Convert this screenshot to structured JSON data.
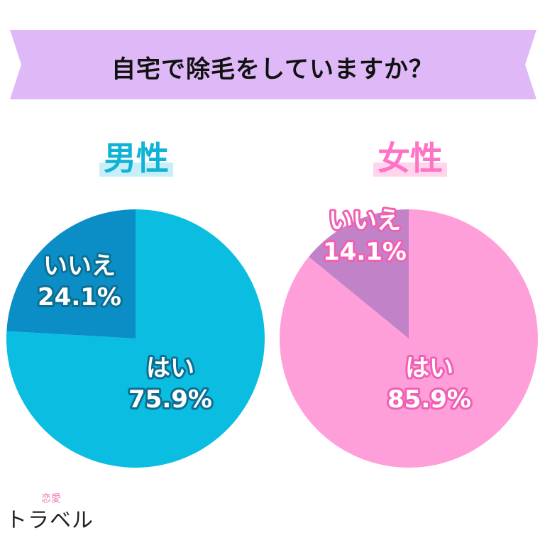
{
  "title": "自宅で除毛をしていますか？",
  "colors": {
    "banner": "#dfb9f7",
    "male_yes": "#0bbde1",
    "male_no": "#0b8ec6",
    "male_text_stroke": "#0c6f92",
    "female_yes": "#ff9fd9",
    "female_no": "#c282c8",
    "female_text_stroke": "#f05fb3"
  },
  "chart_data": [
    {
      "type": "pie",
      "title": "男性",
      "categories": [
        "はい",
        "いいえ"
      ],
      "values": [
        75.9,
        24.1
      ],
      "labels": [
        "75.9%",
        "24.1%"
      ]
    },
    {
      "type": "pie",
      "title": "女性",
      "categories": [
        "はい",
        "いいえ"
      ],
      "values": [
        85.9,
        14.1
      ],
      "labels": [
        "85.9%",
        "14.1%"
      ]
    }
  ],
  "logo": {
    "top": "恋愛",
    "main": "トラベル"
  }
}
